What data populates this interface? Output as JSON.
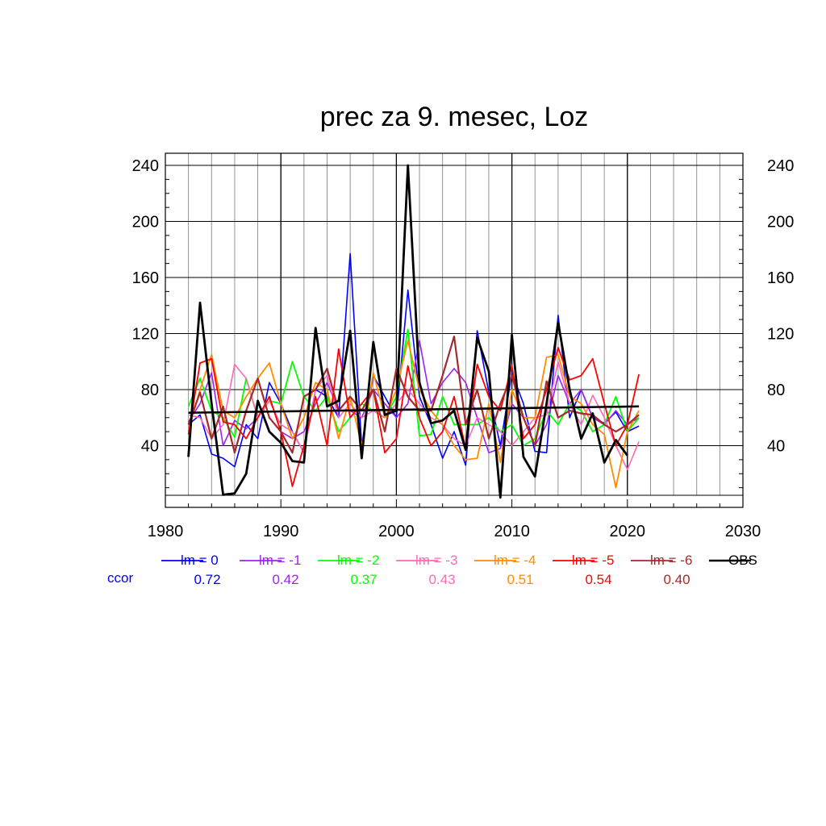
{
  "chart_data": {
    "type": "line",
    "title": "prec za 9. mesec, Loz",
    "xlabel": "",
    "ylabel": "",
    "xlim": [
      1980,
      2030
    ],
    "ylim": [
      3,
      250
    ],
    "x_ticks": [
      "1980",
      "1990",
      "2000",
      "2010",
      "2020",
      "2030"
    ],
    "y_ticks": [
      "40",
      "80",
      "120",
      "160",
      "200",
      "240"
    ],
    "grid": true,
    "ccor_label": "ccor",
    "x": [
      1982,
      1983,
      1984,
      1985,
      1986,
      1987,
      1988,
      1989,
      1990,
      1991,
      1992,
      1993,
      1994,
      1995,
      1996,
      1997,
      1998,
      1999,
      2000,
      2001,
      2002,
      2003,
      2004,
      2005,
      2006,
      2007,
      2008,
      2009,
      2010,
      2011,
      2012,
      2013,
      2014,
      2015,
      2016,
      2017,
      2018,
      2019,
      2020,
      2021
    ],
    "series": [
      {
        "name": "lm = 0",
        "color": "#0000ff",
        "ccor": "0.72",
        "width": 1.6,
        "values": [
          55,
          62,
          34,
          31,
          25,
          55,
          45,
          85,
          70,
          50,
          35,
          80,
          75,
          60,
          177,
          40,
          90,
          75,
          60,
          151,
          75,
          55,
          31,
          50,
          26,
          122,
          78,
          40,
          92,
          70,
          36,
          35,
          133,
          60,
          80,
          60,
          56,
          64,
          50,
          54
        ]
      },
      {
        "name": "lm = -1",
        "color": "#a020f0",
        "ccor": "0.42",
        "width": 1.6,
        "values": [
          57,
          70,
          92,
          40,
          58,
          52,
          60,
          75,
          50,
          45,
          50,
          70,
          85,
          65,
          65,
          60,
          80,
          70,
          60,
          70,
          115,
          70,
          85,
          95,
          85,
          60,
          35,
          38,
          70,
          60,
          40,
          55,
          90,
          70,
          80,
          60,
          55,
          65,
          55,
          60
        ]
      },
      {
        "name": "lm = -2",
        "color": "#00ff00",
        "ccor": "0.37",
        "width": 1.8,
        "values": [
          68,
          88,
          65,
          60,
          46,
          88,
          60,
          72,
          70,
          100,
          75,
          65,
          75,
          50,
          60,
          70,
          65,
          60,
          75,
          123,
          47,
          48,
          75,
          55,
          55,
          55,
          60,
          50,
          55,
          40,
          45,
          65,
          55,
          70,
          65,
          50,
          55,
          75,
          50,
          60
        ]
      },
      {
        "name": "lm = -3",
        "color": "#ff69b4",
        "ccor": "0.43",
        "width": 1.6,
        "values": [
          62,
          60,
          45,
          55,
          98,
          88,
          60,
          72,
          55,
          50,
          35,
          80,
          90,
          60,
          70,
          60,
          65,
          60,
          70,
          80,
          70,
          60,
          55,
          45,
          40,
          60,
          55,
          50,
          40,
          50,
          60,
          62,
          100,
          70,
          55,
          76,
          60,
          40,
          23,
          43
        ]
      },
      {
        "name": "lm = -4",
        "color": "#ff8c00",
        "ccor": "0.51",
        "width": 1.8,
        "values": [
          50,
          80,
          105,
          65,
          60,
          75,
          88,
          99,
          70,
          45,
          60,
          85,
          80,
          45,
          75,
          40,
          92,
          60,
          80,
          115,
          80,
          65,
          55,
          40,
          30,
          31,
          70,
          28,
          80,
          60,
          60,
          103,
          105,
          75,
          70,
          55,
          48,
          10,
          50,
          65
        ]
      },
      {
        "name": "lm = -5",
        "color": "#ff0000",
        "ccor": "0.54",
        "width": 1.8,
        "values": [
          48,
          99,
          102,
          57,
          55,
          45,
          60,
          75,
          50,
          11,
          40,
          75,
          40,
          109,
          60,
          70,
          80,
          35,
          45,
          97,
          60,
          40,
          50,
          75,
          38,
          98,
          75,
          65,
          97,
          45,
          55,
          80,
          110,
          87,
          90,
          102,
          70,
          40,
          55,
          91
        ]
      },
      {
        "name": "lm = -6",
        "color": "#a52a2a",
        "ccor": "0.40",
        "width": 2.2,
        "values": [
          55,
          78,
          45,
          68,
          35,
          65,
          88,
          60,
          50,
          35,
          75,
          80,
          95,
          65,
          75,
          65,
          80,
          50,
          95,
          75,
          65,
          65,
          90,
          118,
          55,
          80,
          45,
          70,
          90,
          60,
          40,
          86,
          60,
          65,
          63,
          62,
          55,
          50,
          55,
          62
        ]
      },
      {
        "name": "OBS",
        "color": "#000000",
        "ccor": "",
        "width": 2.8,
        "values": [
          32,
          142,
          70,
          5,
          6,
          20,
          72,
          50,
          42,
          29,
          28,
          124,
          68,
          72,
          122,
          31,
          114,
          62,
          65,
          240,
          85,
          56,
          58,
          65,
          37,
          117,
          93,
          3,
          119,
          32,
          18,
          70,
          128,
          80,
          45,
          63,
          28,
          44,
          33,
          null
        ]
      }
    ],
    "trend": {
      "name": "OBS trend",
      "color": "#000000",
      "x": [
        1982,
        2021
      ],
      "values": [
        63.5,
        68
      ]
    }
  }
}
